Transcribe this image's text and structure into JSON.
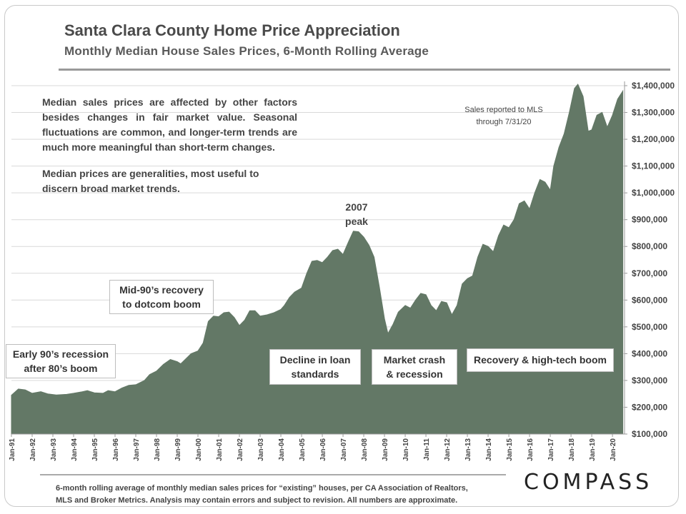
{
  "header": {
    "title": "Santa Clara County Home Price Appreciation",
    "subtitle": "Monthly Median House Sales Prices, 6-Month Rolling Average"
  },
  "notes": {
    "para1": "Median sales prices are affected by other factors besides changes in fair market value. Seasonal fluctuations are common, and longer-term trends are much more meaningful than short-term changes.",
    "para2": "Median prices are generalities, most useful to discern broad market trends."
  },
  "annotations": {
    "peak_line1": "2007",
    "peak_line2": "peak",
    "mls_line1": "Sales reported to MLS",
    "mls_line2": "through 7/31/20",
    "early90s_line1": "Early 90’s recession",
    "early90s_line2": "after 80’s boom",
    "mid90s_line1": "Mid-90’s recovery",
    "mid90s_line2": "to dotcom boom",
    "decline_line1": "Decline in loan",
    "decline_line2": "standards",
    "crash_line1": "Market crash",
    "crash_line2": "& recession",
    "recovery": "Recovery & high-tech boom"
  },
  "footer": {
    "line1": "6-month rolling average of monthly median sales prices for “existing” houses, per CA Association of Realtors,",
    "line2": "MLS and Broker Metrics.  Analysis may contain errors and subject to revision. All numbers are approximate.",
    "logo": "COMPASS"
  },
  "colors": {
    "area": "#637866",
    "grid": "#d9d9d9"
  },
  "chart_data": {
    "type": "area",
    "title": "Santa Clara County Home Price Appreciation",
    "subtitle": "Monthly Median House Sales Prices, 6-Month Rolling Average",
    "xlabel": "",
    "ylabel": "",
    "ylim": [
      100000,
      1400000
    ],
    "yticks": [
      "$100,000",
      "$200,000",
      "$300,000",
      "$400,000",
      "$500,000",
      "$600,000",
      "$700,000",
      "$800,000",
      "$900,000",
      "$1,000,000",
      "$1,100,000",
      "$1,200,000",
      "$1,300,000",
      "$1,400,000"
    ],
    "xticks": [
      "Jan-91",
      "Jan-92",
      "Jan-93",
      "Jan-94",
      "Jan-95",
      "Jan-96",
      "Jan-97",
      "Jan-98",
      "Jan-99",
      "Jan-00",
      "Jan-01",
      "Jan-02",
      "Jan-03",
      "Jan-04",
      "Jan-05",
      "Jan-06",
      "Jan-07",
      "Jan-08",
      "Jan-09",
      "Jan-10",
      "Jan-11",
      "Jan-12",
      "Jan-13",
      "Jan-14",
      "Jan-15",
      "Jan-16",
      "Jan-17",
      "Jan-18",
      "Jan-19",
      "Jan-20"
    ],
    "grid": true,
    "legend": "none",
    "series": [
      {
        "points": [
          [
            "1991-01",
            245000
          ],
          [
            "1991-05",
            268000
          ],
          [
            "1991-09",
            265000
          ],
          [
            "1992-01",
            252000
          ],
          [
            "1992-06",
            258000
          ],
          [
            "1992-10",
            250000
          ],
          [
            "1993-03",
            246000
          ],
          [
            "1993-09",
            248000
          ],
          [
            "1994-01",
            252000
          ],
          [
            "1994-06",
            258000
          ],
          [
            "1994-09",
            262000
          ],
          [
            "1995-01",
            254000
          ],
          [
            "1995-06",
            252000
          ],
          [
            "1995-09",
            262000
          ],
          [
            "1996-01",
            258000
          ],
          [
            "1996-05",
            272000
          ],
          [
            "1996-09",
            282000
          ],
          [
            "1997-01",
            284000
          ],
          [
            "1997-06",
            300000
          ],
          [
            "1997-09",
            322000
          ],
          [
            "1998-01",
            335000
          ],
          [
            "1998-05",
            360000
          ],
          [
            "1998-09",
            378000
          ],
          [
            "1999-01",
            370000
          ],
          [
            "1999-03",
            362000
          ],
          [
            "1999-09",
            400000
          ],
          [
            "2000-01",
            410000
          ],
          [
            "2000-04",
            440000
          ],
          [
            "2000-07",
            520000
          ],
          [
            "2000-10",
            540000
          ],
          [
            "2001-01",
            538000
          ],
          [
            "2001-04",
            553000
          ],
          [
            "2001-07",
            555000
          ],
          [
            "2001-10",
            535000
          ],
          [
            "2002-01",
            505000
          ],
          [
            "2002-04",
            525000
          ],
          [
            "2002-07",
            560000
          ],
          [
            "2002-10",
            560000
          ],
          [
            "2003-01",
            540000
          ],
          [
            "2003-05",
            545000
          ],
          [
            "2003-09",
            553000
          ],
          [
            "2004-01",
            565000
          ],
          [
            "2004-03",
            580000
          ],
          [
            "2004-06",
            610000
          ],
          [
            "2004-09",
            630000
          ],
          [
            "2005-01",
            645000
          ],
          [
            "2005-04",
            700000
          ],
          [
            "2005-07",
            745000
          ],
          [
            "2005-10",
            748000
          ],
          [
            "2006-01",
            740000
          ],
          [
            "2006-04",
            760000
          ],
          [
            "2006-07",
            785000
          ],
          [
            "2006-10",
            790000
          ],
          [
            "2007-01",
            770000
          ],
          [
            "2007-04",
            815000
          ],
          [
            "2007-07",
            857000
          ],
          [
            "2007-10",
            855000
          ],
          [
            "2008-01",
            835000
          ],
          [
            "2008-04",
            805000
          ],
          [
            "2008-07",
            760000
          ],
          [
            "2008-10",
            650000
          ],
          [
            "2009-01",
            530000
          ],
          [
            "2009-03",
            475000
          ],
          [
            "2009-06",
            510000
          ],
          [
            "2009-09",
            555000
          ],
          [
            "2010-01",
            580000
          ],
          [
            "2010-04",
            570000
          ],
          [
            "2010-07",
            600000
          ],
          [
            "2010-10",
            625000
          ],
          [
            "2011-01",
            620000
          ],
          [
            "2011-04",
            580000
          ],
          [
            "2011-07",
            560000
          ],
          [
            "2011-10",
            595000
          ],
          [
            "2012-01",
            590000
          ],
          [
            "2012-04",
            545000
          ],
          [
            "2012-07",
            580000
          ],
          [
            "2012-10",
            660000
          ],
          [
            "2013-01",
            680000
          ],
          [
            "2013-04",
            690000
          ],
          [
            "2013-07",
            760000
          ],
          [
            "2013-10",
            808000
          ],
          [
            "2014-01",
            800000
          ],
          [
            "2014-04",
            780000
          ],
          [
            "2014-07",
            840000
          ],
          [
            "2014-10",
            880000
          ],
          [
            "2015-01",
            870000
          ],
          [
            "2015-04",
            900000
          ],
          [
            "2015-07",
            960000
          ],
          [
            "2015-10",
            970000
          ],
          [
            "2016-01",
            940000
          ],
          [
            "2016-04",
            1000000
          ],
          [
            "2016-07",
            1050000
          ],
          [
            "2016-10",
            1040000
          ],
          [
            "2017-01",
            1010000
          ],
          [
            "2017-03",
            1100000
          ],
          [
            "2017-06",
            1170000
          ],
          [
            "2017-09",
            1220000
          ],
          [
            "2017-12",
            1300000
          ],
          [
            "2018-03",
            1390000
          ],
          [
            "2018-05",
            1405000
          ],
          [
            "2018-08",
            1360000
          ],
          [
            "2018-11",
            1230000
          ],
          [
            "2019-01",
            1235000
          ],
          [
            "2019-04",
            1290000
          ],
          [
            "2019-07",
            1300000
          ],
          [
            "2019-10",
            1245000
          ],
          [
            "2020-01",
            1290000
          ],
          [
            "2020-04",
            1350000
          ],
          [
            "2020-07",
            1380000
          ]
        ]
      }
    ]
  }
}
